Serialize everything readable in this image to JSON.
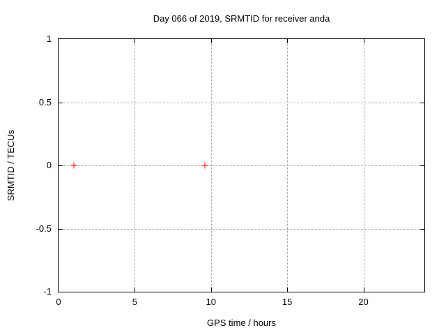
{
  "chart_data": {
    "type": "scatter",
    "title": "Day 066 of 2019, SRMTID for receiver anda",
    "xlabel": "GPS time / hours",
    "ylabel": "SRMTID / TECUs",
    "xlim": [
      0,
      24
    ],
    "ylim": [
      -1,
      1
    ],
    "grid": true,
    "legend": "none",
    "xticks": [
      {
        "value": 0,
        "label": "0"
      },
      {
        "value": 5,
        "label": "5"
      },
      {
        "value": 10,
        "label": "10"
      },
      {
        "value": 15,
        "label": "15"
      },
      {
        "value": 20,
        "label": "20"
      }
    ],
    "yticks": [
      {
        "value": -1,
        "label": "-1"
      },
      {
        "value": -0.5,
        "label": "-0.5"
      },
      {
        "value": 0,
        "label": "0"
      },
      {
        "value": 0.5,
        "label": "0.5"
      },
      {
        "value": 1,
        "label": "1"
      }
    ],
    "series": [
      {
        "name": "SRMTID",
        "marker": "plus",
        "color": "#ff0000",
        "points": [
          {
            "x": 1.0,
            "y": 0.0
          },
          {
            "x": 9.6,
            "y": 0.0
          }
        ]
      }
    ]
  },
  "colors": {
    "background": "#ffffff",
    "border": "#000000",
    "grid": "#9c9c9c",
    "text": "#000000",
    "marker": "#ff0000"
  }
}
